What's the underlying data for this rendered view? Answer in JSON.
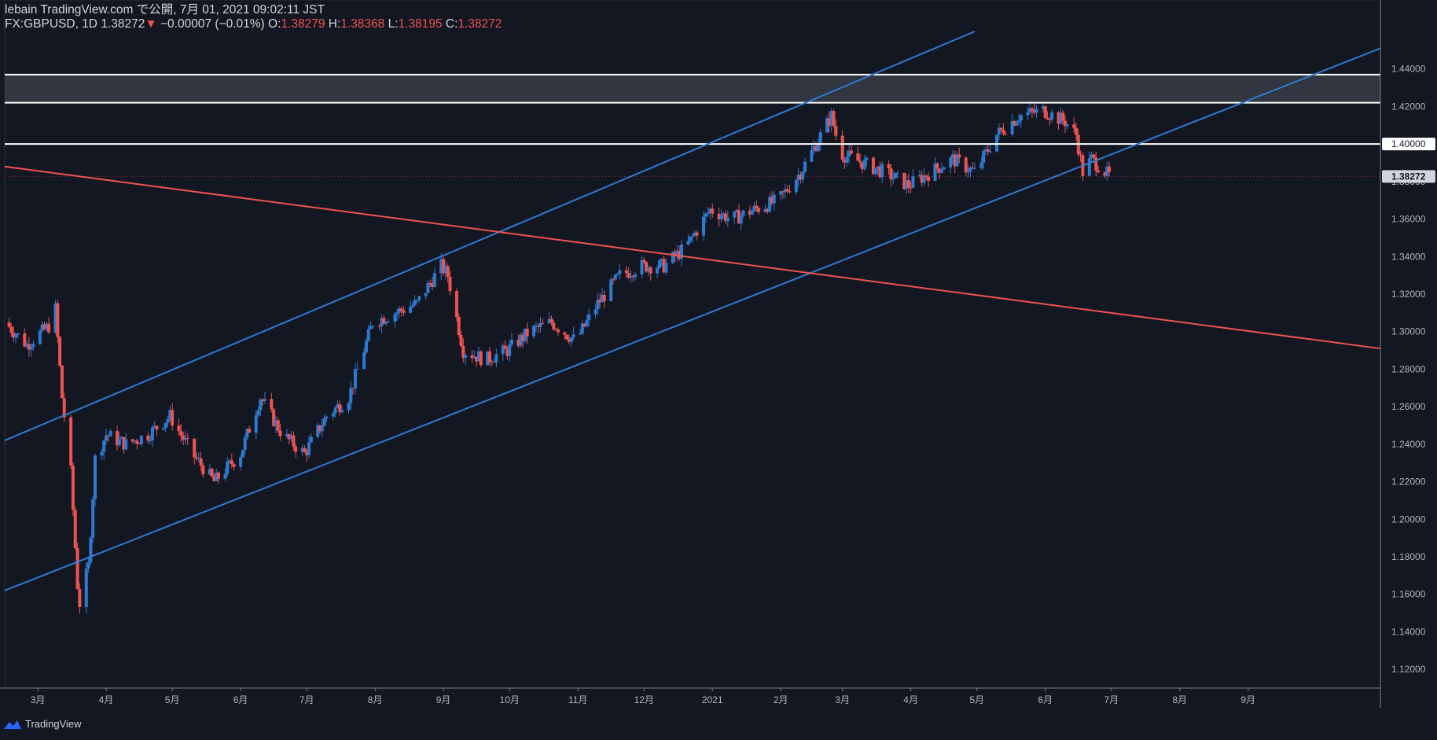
{
  "header": {
    "line1": "lebain TradingView.com で公開, 7月 01, 2021 09:02:11 JST",
    "symbol": "FX:GBPUSD, 1D",
    "last": "1.38272",
    "arrow": "▼",
    "change": "−0.00007 (−0.01%)",
    "o_label": "O:",
    "o_value": "1.38279",
    "h_label": "H:",
    "h_value": "1.38368",
    "l_label": "L:",
    "l_value": "1.38195",
    "c_label": "C:",
    "c_value": "1.38272"
  },
  "footer": {
    "brand": "TradingView"
  },
  "colors": {
    "background": "#131722",
    "up": "#2e7ad1",
    "down": "#ef5350",
    "channel": "#2e7ad1",
    "trend": "#ef5350",
    "level": "#ffffff",
    "zone": "#363a45"
  },
  "chart_data": {
    "type": "candlestick",
    "symbol": "FX:GBPUSD",
    "timeframe": "1D",
    "ylim": [
      1.11,
      1.46
    ],
    "y_ticks": [
      1.12,
      1.14,
      1.16,
      1.18,
      1.2,
      1.22,
      1.24,
      1.26,
      1.28,
      1.3,
      1.32,
      1.34,
      1.36,
      1.38,
      1.4,
      1.42,
      1.44
    ],
    "y_tick_labels": [
      "1.12000",
      "1.14000",
      "1.16000",
      "1.18000",
      "1.20000",
      "1.22000",
      "1.24000",
      "1.26000",
      "1.28000",
      "1.30000",
      "1.32000",
      "1.34000",
      "1.36000",
      "1.38000",
      "1.40000",
      "1.42000",
      "1.44000"
    ],
    "x_range": [
      "2020-02-15",
      "2021-10-31"
    ],
    "x_ticks": [
      {
        "label": "3月",
        "date": "2020-03-01"
      },
      {
        "label": "4月",
        "date": "2020-04-01"
      },
      {
        "label": "5月",
        "date": "2020-05-01"
      },
      {
        "label": "6月",
        "date": "2020-06-01"
      },
      {
        "label": "7月",
        "date": "2020-07-01"
      },
      {
        "label": "8月",
        "date": "2020-08-01"
      },
      {
        "label": "9月",
        "date": "2020-09-01"
      },
      {
        "label": "10月",
        "date": "2020-10-01"
      },
      {
        "label": "11月",
        "date": "2020-11-01"
      },
      {
        "label": "12月",
        "date": "2020-12-01"
      },
      {
        "label": "2021",
        "date": "2021-01-01"
      },
      {
        "label": "2月",
        "date": "2021-02-01"
      },
      {
        "label": "3月",
        "date": "2021-03-01"
      },
      {
        "label": "4月",
        "date": "2021-04-01"
      },
      {
        "label": "5月",
        "date": "2021-05-01"
      },
      {
        "label": "6月",
        "date": "2021-06-01"
      },
      {
        "label": "7月",
        "date": "2021-07-01"
      },
      {
        "label": "8月",
        "date": "2021-08-01"
      },
      {
        "label": "9月",
        "date": "2021-09-01"
      }
    ],
    "close_path": [
      [
        "2020-02-15",
        1.305
      ],
      [
        "2020-02-25",
        1.293
      ],
      [
        "2020-03-06",
        1.303
      ],
      [
        "2020-03-09",
        1.312
      ],
      [
        "2020-03-12",
        1.265
      ],
      [
        "2020-03-16",
        1.225
      ],
      [
        "2020-03-19",
        1.165
      ],
      [
        "2020-03-20",
        1.155
      ],
      [
        "2020-03-24",
        1.175
      ],
      [
        "2020-03-27",
        1.232
      ],
      [
        "2020-04-01",
        1.245
      ],
      [
        "2020-04-10",
        1.24
      ],
      [
        "2020-04-20",
        1.245
      ],
      [
        "2020-04-30",
        1.255
      ],
      [
        "2020-05-10",
        1.235
      ],
      [
        "2020-05-20",
        1.22
      ],
      [
        "2020-06-01",
        1.235
      ],
      [
        "2020-06-10",
        1.265
      ],
      [
        "2020-06-20",
        1.245
      ],
      [
        "2020-06-30",
        1.235
      ],
      [
        "2020-07-10",
        1.255
      ],
      [
        "2020-07-20",
        1.265
      ],
      [
        "2020-07-31",
        1.305
      ],
      [
        "2020-08-10",
        1.31
      ],
      [
        "2020-08-20",
        1.315
      ],
      [
        "2020-08-31",
        1.335
      ],
      [
        "2020-09-03",
        1.33
      ],
      [
        "2020-09-10",
        1.29
      ],
      [
        "2020-09-20",
        1.285
      ],
      [
        "2020-09-30",
        1.29
      ],
      [
        "2020-10-10",
        1.3
      ],
      [
        "2020-10-20",
        1.305
      ],
      [
        "2020-10-31",
        1.295
      ],
      [
        "2020-11-10",
        1.315
      ],
      [
        "2020-11-20",
        1.33
      ],
      [
        "2020-11-30",
        1.335
      ],
      [
        "2020-12-10",
        1.335
      ],
      [
        "2020-12-20",
        1.345
      ],
      [
        "2020-12-31",
        1.365
      ],
      [
        "2021-01-10",
        1.36
      ],
      [
        "2021-01-20",
        1.365
      ],
      [
        "2021-01-31",
        1.37
      ],
      [
        "2021-02-10",
        1.385
      ],
      [
        "2021-02-24",
        1.415
      ],
      [
        "2021-02-28",
        1.395
      ],
      [
        "2021-03-10",
        1.39
      ],
      [
        "2021-03-20",
        1.385
      ],
      [
        "2021-03-31",
        1.378
      ],
      [
        "2021-04-10",
        1.385
      ],
      [
        "2021-04-20",
        1.392
      ],
      [
        "2021-04-30",
        1.385
      ],
      [
        "2021-05-10",
        1.405
      ],
      [
        "2021-05-20",
        1.415
      ],
      [
        "2021-05-31",
        1.418
      ],
      [
        "2021-06-10",
        1.412
      ],
      [
        "2021-06-15",
        1.405
      ],
      [
        "2021-06-18",
        1.385
      ],
      [
        "2021-06-22",
        1.392
      ],
      [
        "2021-06-30",
        1.383
      ]
    ],
    "last_price": 1.38272,
    "levels": [
      {
        "name": "resistance-1.40000",
        "price": 1.4,
        "label": "1.40000"
      },
      {
        "name": "zone-bottom",
        "price": 1.422
      },
      {
        "name": "zone-top",
        "price": 1.437
      }
    ],
    "channel_upper": {
      "from": [
        "2020-02-15",
        1.242
      ],
      "to": [
        "2021-04-30",
        1.46
      ]
    },
    "channel_lower": {
      "from": [
        "2020-02-15",
        1.162
      ],
      "to": [
        "2021-10-31",
        1.451
      ]
    },
    "trendline": {
      "from": [
        "2020-02-15",
        1.388
      ],
      "to": [
        "2021-10-31",
        1.291
      ]
    }
  }
}
